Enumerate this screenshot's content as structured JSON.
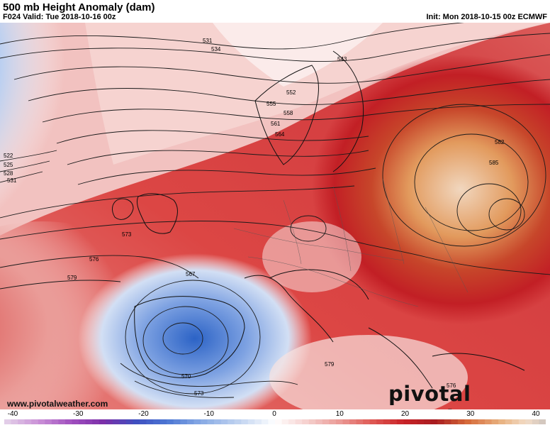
{
  "header": {
    "title": "500 mb Height Anomaly (dam)",
    "valid": "F024 Valid: Tue 2018-10-16 00z",
    "init": "Init: Mon 2018-10-15 00z ECMWF"
  },
  "contour_labels": [
    "531",
    "534",
    "543",
    "552",
    "555",
    "558",
    "561",
    "564",
    "522",
    "525",
    "528",
    "531",
    "573",
    "576",
    "579",
    "567",
    "570",
    "573",
    "579",
    "576",
    "582",
    "585"
  ],
  "watermark": {
    "url": "www.pivotalweather.com",
    "logo": "pivotal weather"
  },
  "colorbar": {
    "ticks": [
      "-40",
      "-30",
      "-20",
      "-10",
      "0",
      "10",
      "20",
      "30",
      "40"
    ],
    "min": -40,
    "max": 40
  },
  "colors": {
    "neg_extreme": "#7b2fb0",
    "neg": "#2f5fc8",
    "neutral": "#ffffff",
    "pos": "#d92b2b",
    "pos_extreme": "#e8b48a"
  }
}
